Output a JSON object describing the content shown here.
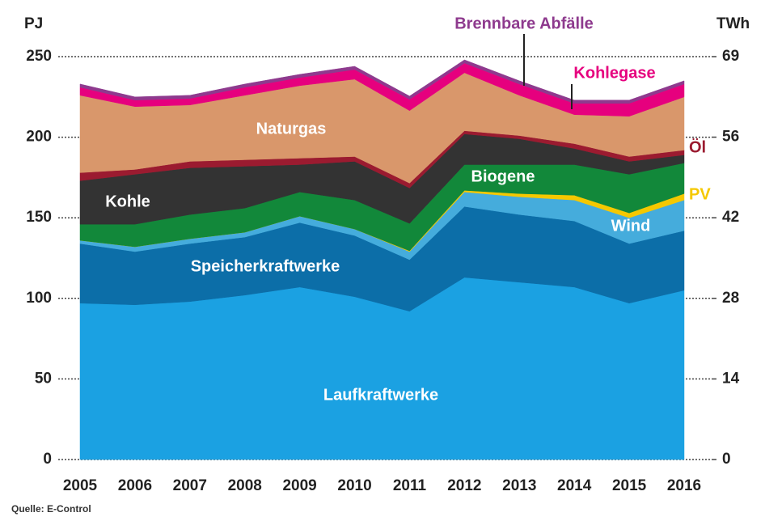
{
  "chart_data": {
    "type": "stacked-area",
    "y_label": "PJ",
    "y2_label": "TWh",
    "source": "Quelle: E-Control",
    "categories": [
      "2005",
      "2006",
      "2007",
      "2008",
      "2009",
      "2010",
      "2011",
      "2012",
      "2013",
      "2014",
      "2015",
      "2016"
    ],
    "ylim": [
      0,
      250
    ],
    "yticks": [
      0,
      50,
      100,
      150,
      200,
      250
    ],
    "y2lim": [
      0,
      69.44
    ],
    "y2ticks": [
      0,
      {
        "value": 13.89,
        "label": "14"
      },
      {
        "value": 27.78,
        "label": "28"
      },
      {
        "value": 41.67,
        "label": "42"
      },
      {
        "value": 55.56,
        "label": "56"
      },
      {
        "value": 69.44,
        "label": "69"
      }
    ],
    "grid": true,
    "series": [
      {
        "name": "Laufkraftwerke",
        "color": "#1ba1e2",
        "values": [
          97,
          96,
          98,
          102,
          107,
          101,
          92,
          113,
          110,
          107,
          97,
          105
        ]
      },
      {
        "name": "Speicherkraftwerke",
        "color": "#0c6ea8",
        "values": [
          37,
          33,
          36,
          36,
          40,
          38,
          32,
          44,
          42,
          41,
          37,
          37
        ]
      },
      {
        "name": "Wind",
        "color": "#45acdc",
        "values": [
          2,
          3,
          3,
          3,
          4,
          4,
          5,
          9,
          11,
          13,
          16,
          19
        ]
      },
      {
        "name": "PV",
        "color": "#f5c800",
        "values": [
          0,
          0,
          0,
          0,
          0,
          0,
          0.5,
          1,
          2,
          3,
          3,
          4
        ]
      },
      {
        "name": "Biogene",
        "color": "#12883a",
        "values": [
          10,
          14,
          15,
          15,
          15,
          18,
          17,
          16,
          18,
          19,
          24,
          19
        ]
      },
      {
        "name": "Kohle",
        "color": "#333333",
        "values": [
          27,
          31,
          29,
          26,
          17,
          24,
          22,
          19,
          16,
          10,
          8,
          5
        ]
      },
      {
        "name": "Öl",
        "color": "#9b1b30",
        "values": [
          5,
          3,
          4,
          4,
          4,
          3,
          3,
          2,
          2,
          3,
          3,
          3
        ]
      },
      {
        "name": "Naturgas",
        "color": "#d9976b",
        "values": [
          48,
          39,
          35,
          40,
          45,
          48,
          45,
          36,
          25,
          18,
          25,
          33
        ]
      },
      {
        "name": "Kohlegase",
        "color": "#e6007e",
        "values": [
          5,
          4,
          4,
          5,
          5,
          6,
          7,
          6,
          7,
          7,
          8,
          8
        ]
      },
      {
        "name": "Brennbare Abfälle",
        "color": "#8e3a8e",
        "values": [
          2,
          2,
          2,
          2,
          2,
          2,
          2,
          2,
          2,
          2,
          2,
          2
        ]
      }
    ]
  }
}
